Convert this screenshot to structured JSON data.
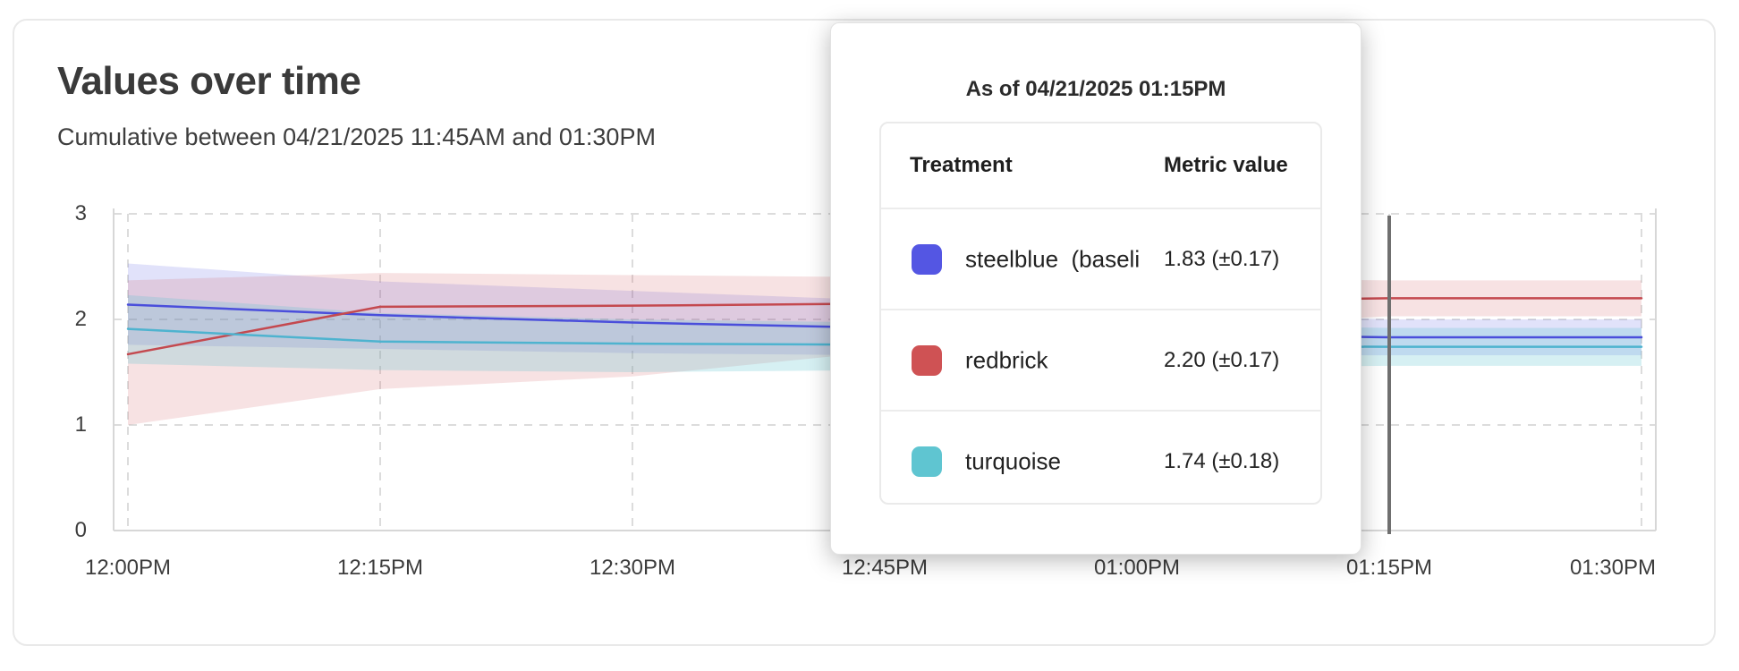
{
  "card": {
    "title": "Values over time",
    "subtitle": "Cumulative between 04/21/2025 11:45AM and 01:30PM"
  },
  "tooltip": {
    "title": "As of 04/21/2025 01:15PM",
    "columns": {
      "treatment": "Treatment",
      "metric": "Metric value"
    },
    "rows": [
      {
        "label": "steelblue  (baseli",
        "value": "1.83 (±0.17)",
        "color": "#5456e3"
      },
      {
        "label": "redbrick",
        "value": "2.20 (±0.17)",
        "color": "#cf5254"
      },
      {
        "label": "turquoise",
        "value": "1.74 (±0.18)",
        "color": "#5fc5d1"
      }
    ]
  },
  "chart_data": {
    "type": "line",
    "title": "Values over time",
    "subtitle": "Cumulative between 04/21/2025 11:45AM and 01:30PM",
    "x": [
      "12:00PM",
      "12:15PM",
      "12:30PM",
      "12:45PM",
      "01:00PM",
      "01:15PM",
      "01:30PM"
    ],
    "y_ticks": [
      0,
      1,
      2,
      3
    ],
    "ylim": [
      0,
      3
    ],
    "grid": true,
    "hover": {
      "x_label": "01:15PM",
      "x_index": 5,
      "line_color": "#6f6f6f"
    },
    "series": [
      {
        "name": "steelblue (baseline)",
        "color": "#4a4edb",
        "band_color": "rgba(88,92,228,0.18)",
        "values": [
          2.14,
          2.04,
          1.97,
          1.92,
          1.87,
          1.83,
          1.83
        ],
        "band_upper": [
          2.53,
          2.36,
          2.27,
          2.18,
          2.08,
          2.0,
          2.0
        ],
        "band_lower": [
          1.76,
          1.72,
          1.68,
          1.66,
          1.66,
          1.66,
          1.66
        ],
        "value_at_hover": "1.83 (±0.17)"
      },
      {
        "name": "redbrick",
        "color": "#c4494f",
        "band_color": "rgba(206,84,90,0.17)",
        "values": [
          1.67,
          2.12,
          2.13,
          2.15,
          2.17,
          2.2,
          2.2
        ],
        "band_upper": [
          2.37,
          2.44,
          2.42,
          2.4,
          2.39,
          2.37,
          2.37
        ],
        "band_lower": [
          1.0,
          1.34,
          1.46,
          1.7,
          1.9,
          2.03,
          2.03
        ],
        "value_at_hover": "2.20 (±0.17)"
      },
      {
        "name": "turquoise",
        "color": "#4eb3cf",
        "band_color": "rgba(96,198,210,0.26)",
        "values": [
          1.91,
          1.79,
          1.77,
          1.76,
          1.75,
          1.74,
          1.74
        ],
        "band_upper": [
          2.23,
          2.06,
          2.0,
          1.97,
          1.95,
          1.92,
          1.92
        ],
        "band_lower": [
          1.58,
          1.52,
          1.5,
          1.52,
          1.54,
          1.56,
          1.56
        ],
        "value_at_hover": "1.74 (±0.18)"
      }
    ]
  }
}
